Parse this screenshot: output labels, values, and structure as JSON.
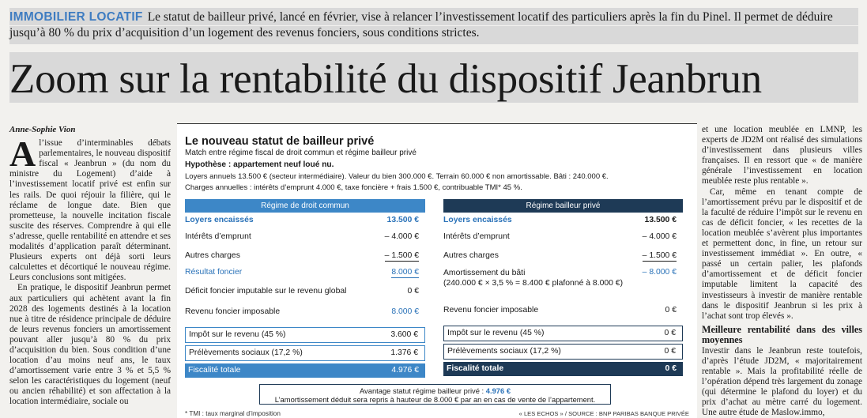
{
  "lede": {
    "kicker": "IMMOBILIER LOCATIF",
    "text": "Le statut de bailleur privé, lancé en février, vise à relancer l’investissement locatif des particuliers après la fin du Pinel. Il permet de déduire jusqu’à 80 % du prix d’acquisition d’un logement des revenus fonciers, sous conditions strictes."
  },
  "headline": "Zoom sur la rentabilité du dispositif Jeanbrun",
  "left_column": {
    "byline": "Anne-Sophie Vion",
    "dropcap": "A",
    "p1": "l’issue d’interminables débats parlementaires, le nouveau dispositif fiscal « Jeanbrun » (du nom du ministre du Logement) d’aide à l’investissement locatif privé est enfin sur les rails. De quoi réjouir la filière, qui le réclame de longue date. Bien que prometteuse, la nouvelle incitation fiscale suscite des réserves. Comprendre à qui elle s’adresse, quelle rentabilité en attendre et ses modalités d’application paraît déterminant. Plusieurs experts ont déjà sorti leurs calculettes et décortiqué le nouveau régime. Leurs conclusions sont mitigées.",
    "p2": "En pratique, le dispositif Jeanbrun permet aux particuliers qui achètent avant la fin 2028 des logements destinés à la location nue à titre de résidence principale de déduire de leurs revenus fonciers un amortissement pouvant aller jusqu’à 80 % du prix d’acquisition du bien. Sous condition d’une location d’au moins neuf ans, le taux d’amortissement varie entre 3 % et 5,5 % selon les caractéristiques du logement (neuf ou ancien réhabilité) et son affectation à la location intermédiaire, sociale ou"
  },
  "right_column": {
    "p1": "et une location meublée en LMNP, les experts de JD2M ont réalisé des simulations d’investissement dans plusieurs villes françaises. Il en ressort que « de manière générale l’investissement en location meublée reste plus rentable ».",
    "p2": "Car, même en tenant compte de l’amortissement prévu par le dispositif et de la faculté de réduire l’impôt sur le revenu en cas de déficit foncier, « les recettes de la location meublée s’avèrent plus importantes et permettent donc, in fine, un retour sur investissement immédiat ». En outre, « passé un certain palier, les plafonds d’amortissement et de déficit foncier imputable limitent la capacité des investisseurs à investir de manière rentable dans le dispositif Jeanbrun si les prix à l’achat sont trop élevés ».",
    "subhead": "Meilleure rentabilité dans des villes moyennes",
    "p3": "Investir dans le Jeanbrun reste toutefois, d’après l’étude JD2M, « majoritairement rentable ». Mais la profitabilité réelle de l’opération dépend très largement du zonage (qui détermine le plafond du loyer) et du prix d’achat au mètre carré du logement. Une autre étude de Maslow.immo,"
  },
  "infographic": {
    "title": "Le nouveau statut de bailleur privé",
    "subtitle": "Match entre régime fiscal de droit commun et régime bailleur privé",
    "hypothesis": "Hypothèse : appartement neuf loué nu.",
    "line1": "Loyers annuels 13.500 € (secteur intermédiaire). Valeur du bien 300.000 €. Terrain 60.000 € non amortissable. Bâti : 240.000 €.",
    "line2": "Charges annuelles : intérêts d’emprunt 4.000 €, taxe foncière + frais 1.500 €, contribuable TMI* 45 %.",
    "left_table": {
      "header": "Régime de droit commun",
      "rows": [
        {
          "label": "Loyers encaissés",
          "value": "13.500 €"
        },
        {
          "label": "Intérêts d’emprunt",
          "value": "– 4.000 €"
        },
        {
          "label": "Autres charges",
          "value": "– 1.500 €"
        },
        {
          "label": "Résultat foncier",
          "value": "8.000 €"
        },
        {
          "label": "Déficit foncier imputable sur le revenu global",
          "value": "0 €"
        },
        {
          "label": "Revenu foncier imposable",
          "value": "8.000 €"
        },
        {
          "label": "Impôt sur le revenu (45 %)",
          "value": "3.600 €"
        },
        {
          "label": "Prélèvements sociaux (17,2 %)",
          "value": "1.376 €"
        },
        {
          "label": "Fiscalité totale",
          "value": "4.976 €"
        }
      ]
    },
    "right_table": {
      "header": "Régime bailleur privé",
      "rows": [
        {
          "label": "Loyers encaissés",
          "value": "13.500 €"
        },
        {
          "label": "Intérêts d’emprunt",
          "value": "– 4.000 €"
        },
        {
          "label": "Autres charges",
          "value": "– 1.500 €"
        },
        {
          "label": "Amortissement du bâti",
          "label2": "(240.000 € × 3,5 % = 8.400 € plafonné à 8.000 €)",
          "value": "– 8.000 €"
        },
        {
          "label": "Revenu foncier imposable",
          "value": "0 €"
        },
        {
          "label": "Impôt sur le revenu (45 %)",
          "value": "0 €"
        },
        {
          "label": "Prélèvements sociaux (17,2 %)",
          "value": "0 €"
        },
        {
          "label": "Fiscalité totale",
          "value": "0 €"
        }
      ]
    },
    "advantage_prefix": "Avantage statut régime bailleur privé : ",
    "advantage_value": "4.976 €",
    "advantage_line2": "L’amortissement déduit sera repris à hauteur de 8.000 € par an en cas de vente de l’appartement.",
    "footnote": "* TMI : taux marginal d’imposition",
    "source": "« LES ECHOS » / SOURCE : BNP PARIBAS BANQUE PRIVÉE"
  },
  "colors": {
    "kicker_blue": "#3e7cc1",
    "table_left_header": "#3d87c7",
    "table_right_header": "#1e3a56",
    "highlight_blue": "#2a72b8"
  }
}
